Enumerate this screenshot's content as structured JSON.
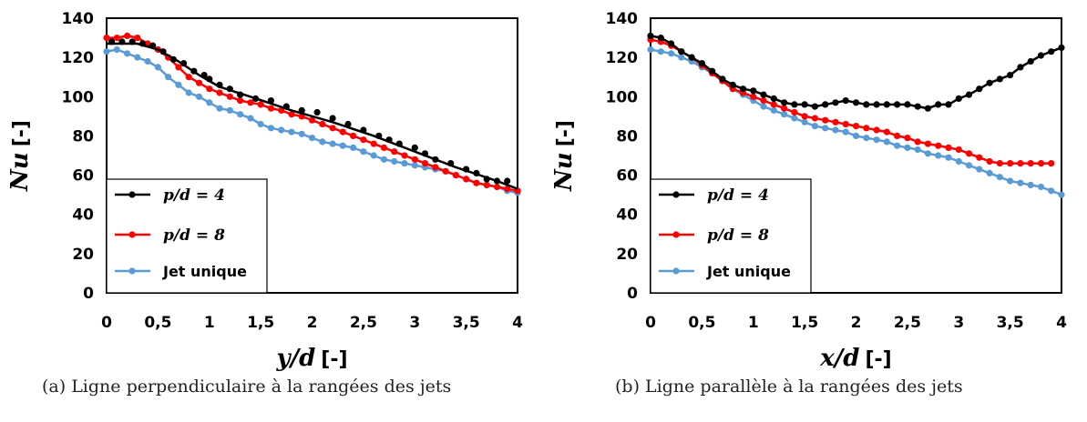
{
  "chart_data": [
    {
      "type": "line",
      "caption": "(a) Ligne perpendiculaire à la rangées des jets",
      "xlabel": "y/d",
      "xlabel_unit": "[-]",
      "ylabel": "Nu",
      "ylabel_unit": "[-]",
      "xlim": [
        0,
        4
      ],
      "ylim": [
        0,
        140
      ],
      "x_ticks": [
        "0",
        "0,5",
        "1",
        "1,5",
        "2",
        "2,5",
        "3",
        "3,5",
        "4"
      ],
      "y_ticks": [
        "0",
        "20",
        "40",
        "60",
        "80",
        "100",
        "120",
        "140"
      ],
      "grid": false,
      "legend_position": "bottom-left",
      "series": [
        {
          "name": "p/d = 4",
          "color": "#000000",
          "x": [
            0.05,
            0.15,
            0.25,
            0.35,
            0.45,
            0.55,
            0.65,
            0.75,
            0.85,
            0.95,
            1.0,
            1.1,
            1.2,
            1.3,
            1.45,
            1.6,
            1.75,
            1.9,
            2.05,
            2.2,
            2.35,
            2.5,
            2.65,
            2.75,
            2.85,
            3.0,
            3.1,
            3.2,
            3.35,
            3.5,
            3.6,
            3.7,
            3.8,
            3.9
          ],
          "y": [
            128,
            128,
            128,
            127,
            126,
            123,
            119,
            117,
            113,
            111,
            109,
            106,
            104,
            101,
            99,
            98,
            95,
            93,
            92,
            89,
            86,
            83,
            80,
            78,
            76,
            74,
            71,
            68,
            66,
            63,
            61,
            58,
            57,
            57
          ],
          "fit_x": [
            0,
            0.3,
            0.5,
            0.7,
            0.9,
            1.1,
            1.4,
            1.8,
            2.2,
            2.6,
            3.0,
            3.4,
            3.8,
            4.0
          ],
          "fit_y": [
            127,
            127,
            124,
            118,
            111,
            105,
            100,
            93,
            87,
            80,
            72,
            64,
            57,
            53
          ]
        },
        {
          "name": "p/d = 8",
          "color": "#ff0000",
          "x": [
            0.0,
            0.1,
            0.2,
            0.3,
            0.4,
            0.5,
            0.6,
            0.7,
            0.8,
            0.9,
            1.0,
            1.1,
            1.2,
            1.3,
            1.4,
            1.5,
            1.6,
            1.7,
            1.8,
            1.9,
            2.0,
            2.1,
            2.2,
            2.3,
            2.4,
            2.5,
            2.6,
            2.7,
            2.8,
            2.9,
            3.0,
            3.1,
            3.2,
            3.3,
            3.4,
            3.5,
            3.6,
            3.7,
            3.8,
            3.9,
            4.0
          ],
          "y": [
            130,
            130,
            131,
            130,
            127,
            124,
            120,
            115,
            110,
            107,
            104,
            102,
            100,
            98,
            97,
            96,
            94,
            93,
            91,
            90,
            88,
            86,
            84,
            82,
            80,
            78,
            76,
            74,
            72,
            70,
            68,
            66,
            64,
            62,
            60,
            58,
            56,
            55,
            54,
            53,
            52
          ]
        },
        {
          "name": "Jet unique",
          "color": "#5b9bd5",
          "x": [
            0.0,
            0.1,
            0.2,
            0.3,
            0.4,
            0.5,
            0.6,
            0.7,
            0.8,
            0.9,
            1.0,
            1.1,
            1.2,
            1.3,
            1.4,
            1.5,
            1.6,
            1.7,
            1.8,
            1.9,
            2.0,
            2.1,
            2.2,
            2.3,
            2.4,
            2.5,
            2.6,
            2.7,
            2.8,
            2.9,
            3.0,
            3.1,
            3.2,
            3.3,
            3.4,
            3.5,
            3.6,
            3.7,
            3.8,
            3.9,
            4.0
          ],
          "y": [
            123,
            124,
            122,
            120,
            118,
            115,
            110,
            106,
            102,
            100,
            97,
            94,
            93,
            91,
            89,
            86,
            84,
            83,
            82,
            81,
            79,
            77,
            76,
            75,
            74,
            72,
            70,
            68,
            67,
            66,
            65,
            64,
            63,
            62,
            60,
            58,
            56,
            55,
            54,
            52,
            51
          ]
        }
      ]
    },
    {
      "type": "line",
      "caption": "(b) Ligne parallèle à la rangées des jets",
      "xlabel": "x/d",
      "xlabel_unit": "[-]",
      "ylabel": "Nu",
      "ylabel_unit": "[-]",
      "xlim": [
        0,
        4
      ],
      "ylim": [
        0,
        140
      ],
      "x_ticks": [
        "0",
        "0,5",
        "1",
        "1,5",
        "2",
        "2,5",
        "3",
        "3,5",
        "4"
      ],
      "y_ticks": [
        "0",
        "20",
        "40",
        "60",
        "80",
        "100",
        "120",
        "140"
      ],
      "grid": false,
      "legend_position": "bottom-left",
      "series": [
        {
          "name": "p/d = 4",
          "color": "#000000",
          "x": [
            0.0,
            0.1,
            0.2,
            0.3,
            0.4,
            0.5,
            0.6,
            0.7,
            0.8,
            0.9,
            1.0,
            1.1,
            1.2,
            1.3,
            1.4,
            1.5,
            1.6,
            1.7,
            1.8,
            1.9,
            2.0,
            2.1,
            2.2,
            2.3,
            2.4,
            2.5,
            2.6,
            2.7,
            2.8,
            2.9,
            3.0,
            3.1,
            3.2,
            3.3,
            3.4,
            3.5,
            3.6,
            3.7,
            3.8,
            3.9,
            4.0
          ],
          "y": [
            131,
            130,
            127,
            123,
            120,
            117,
            113,
            109,
            106,
            104,
            103,
            101,
            99,
            97,
            96,
            96,
            95,
            96,
            97,
            98,
            97,
            96,
            96,
            96,
            96,
            96,
            95,
            94,
            96,
            96,
            99,
            101,
            104,
            107,
            109,
            111,
            115,
            118,
            121,
            123,
            125
          ]
        },
        {
          "name": "p/d = 8",
          "color": "#ff0000",
          "x": [
            0.0,
            0.1,
            0.2,
            0.3,
            0.4,
            0.5,
            0.6,
            0.7,
            0.8,
            0.9,
            1.0,
            1.1,
            1.2,
            1.3,
            1.4,
            1.5,
            1.6,
            1.7,
            1.8,
            1.9,
            2.0,
            2.1,
            2.2,
            2.3,
            2.4,
            2.5,
            2.6,
            2.7,
            2.8,
            2.9,
            3.0,
            3.1,
            3.2,
            3.3,
            3.4,
            3.5,
            3.6,
            3.7,
            3.8,
            3.9
          ],
          "y": [
            129,
            128,
            126,
            123,
            120,
            116,
            112,
            108,
            104,
            102,
            100,
            98,
            96,
            94,
            92,
            90,
            89,
            88,
            87,
            86,
            85,
            84,
            83,
            82,
            80,
            79,
            77,
            76,
            75,
            74,
            73,
            71,
            69,
            67,
            66,
            66,
            66,
            66,
            66,
            66
          ]
        },
        {
          "name": "Jet unique",
          "color": "#5b9bd5",
          "x": [
            0.0,
            0.1,
            0.2,
            0.3,
            0.4,
            0.5,
            0.6,
            0.7,
            0.8,
            0.9,
            1.0,
            1.1,
            1.2,
            1.3,
            1.4,
            1.5,
            1.6,
            1.7,
            1.8,
            1.9,
            2.0,
            2.1,
            2.2,
            2.3,
            2.4,
            2.5,
            2.6,
            2.7,
            2.8,
            2.9,
            3.0,
            3.1,
            3.2,
            3.3,
            3.4,
            3.5,
            3.6,
            3.7,
            3.8,
            3.9,
            4.0
          ],
          "y": [
            124,
            123,
            122,
            120,
            118,
            115,
            112,
            108,
            104,
            101,
            98,
            95,
            93,
            91,
            89,
            87,
            85,
            84,
            83,
            82,
            80,
            79,
            78,
            77,
            75,
            74,
            73,
            71,
            70,
            69,
            67,
            65,
            63,
            61,
            59,
            57,
            56,
            55,
            54,
            52,
            50
          ]
        }
      ]
    }
  ]
}
